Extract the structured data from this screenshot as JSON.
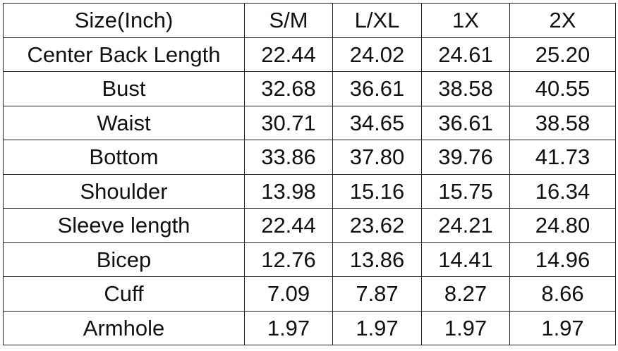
{
  "table": {
    "header": [
      "Size(Inch)",
      "S/M",
      "L/XL",
      "1X",
      "2X"
    ],
    "rows": [
      [
        "Center Back Length",
        "22.44",
        "24.02",
        "24.61",
        "25.20"
      ],
      [
        "Bust",
        "32.68",
        "36.61",
        "38.58",
        "40.55"
      ],
      [
        "Waist",
        "30.71",
        "34.65",
        "36.61",
        "38.58"
      ],
      [
        "Bottom",
        "33.86",
        "37.80",
        "39.76",
        "41.73"
      ],
      [
        "Shoulder",
        "13.98",
        "15.16",
        "15.75",
        "16.34"
      ],
      [
        "Sleeve length",
        "22.44",
        "23.62",
        "24.21",
        "24.80"
      ],
      [
        "Bicep",
        "12.76",
        "13.86",
        "14.41",
        "14.96"
      ],
      [
        "Cuff",
        "7.09",
        "7.87",
        "8.27",
        "8.66"
      ],
      [
        "Armhole",
        "1.97",
        "1.97",
        "1.97",
        "1.97"
      ]
    ]
  }
}
